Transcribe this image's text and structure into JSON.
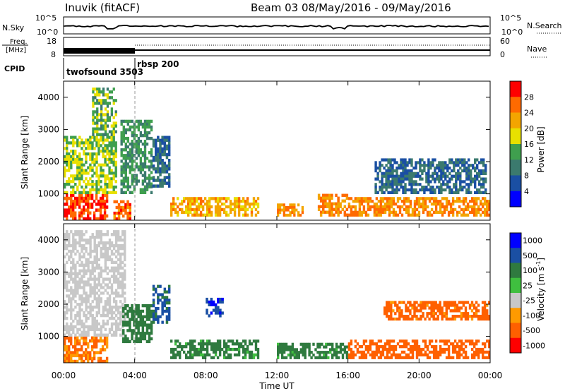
{
  "header": {
    "station": "Inuvik (fitACF)",
    "beam": "Beam 03 08/May/2016 - 09/May/2016"
  },
  "top_panels": {
    "nsky": {
      "left_label": "N.Sky",
      "left_ticks": [
        "10^5",
        "10^0"
      ],
      "right_ticks": [
        "10^5",
        "10^0"
      ],
      "right_label": "N.Search"
    },
    "freq": {
      "label_line1": "Freq.",
      "label_line2": "[MHz]",
      "left_ticks": [
        "18",
        "8"
      ],
      "right_ticks": [
        "60",
        "0"
      ],
      "right_label": "Nave"
    },
    "cpid": {
      "label": "CPID",
      "modes": [
        {
          "name": "twofsound 3503",
          "start_h": 0,
          "end_h": 4
        },
        {
          "name": "rbsp 200",
          "start_h": 4,
          "end_h": 24
        }
      ]
    }
  },
  "chart_data": [
    {
      "type": "heatmap",
      "title": "Power",
      "xlabel": "Time UT",
      "ylabel": "Slant Range [km]",
      "xlim": [
        0,
        24
      ],
      "ylim": [
        180,
        4500
      ],
      "x_ticks": [
        "00:00",
        "04:00",
        "08:00",
        "12:00",
        "16:00",
        "20:00",
        "00:00"
      ],
      "y_ticks": [
        "1000",
        "2000",
        "3000",
        "4000"
      ],
      "colorbar": {
        "label": "Power [dB]",
        "ticks": [
          "4",
          "8",
          "12",
          "16",
          "20",
          "24",
          "28"
        ],
        "colors": [
          "#0000ff",
          "#1a4fa3",
          "#3b7a6e",
          "#3f9f4e",
          "#e8e000",
          "#f3a500",
          "#ff6a00",
          "#ff0000"
        ]
      },
      "regions": [
        {
          "t0": 0.0,
          "t1": 2.5,
          "r0": 180,
          "r1": 1000,
          "value": 28
        },
        {
          "t0": 0.0,
          "t1": 3.0,
          "r0": 1000,
          "r1": 2800,
          "value": 16
        },
        {
          "t0": 1.6,
          "t1": 3.0,
          "r0": 2800,
          "r1": 4300,
          "value": 14
        },
        {
          "t0": 2.8,
          "t1": 3.8,
          "r0": 180,
          "r1": 800,
          "value": 26
        },
        {
          "t0": 3.2,
          "t1": 5.0,
          "r0": 1000,
          "r1": 3300,
          "value": 12
        },
        {
          "t0": 5.0,
          "t1": 6.0,
          "r0": 1200,
          "r1": 2800,
          "value": 8
        },
        {
          "t0": 6.0,
          "t1": 11.0,
          "r0": 300,
          "r1": 900,
          "value": 22
        },
        {
          "t0": 12.0,
          "t1": 13.5,
          "r0": 300,
          "r1": 700,
          "value": 24
        },
        {
          "t0": 14.3,
          "t1": 16.0,
          "r0": 300,
          "r1": 1000,
          "value": 24
        },
        {
          "t0": 16.0,
          "t1": 24.0,
          "r0": 300,
          "r1": 900,
          "value": 24
        },
        {
          "t0": 17.5,
          "t1": 23.8,
          "r0": 1000,
          "r1": 2100,
          "value": 8
        }
      ]
    },
    {
      "type": "heatmap",
      "title": "Velocity",
      "xlabel": "Time UT",
      "ylabel": "Slant Range [km]",
      "xlim": [
        0,
        24
      ],
      "ylim": [
        180,
        4500
      ],
      "x_ticks": [
        "00:00",
        "04:00",
        "08:00",
        "12:00",
        "16:00",
        "20:00",
        "00:00"
      ],
      "y_ticks": [
        "1000",
        "2000",
        "3000",
        "4000"
      ],
      "colorbar": {
        "label": "Velocity [m s^-1]",
        "ticks": [
          "1000",
          "500",
          "100",
          "25",
          "-25",
          "-100",
          "-500",
          "-1000"
        ],
        "colors": [
          "#0000ff",
          "#1a4fa3",
          "#2f7a3f",
          "#3fbf3f",
          "#c8c8c8",
          "#ff9a00",
          "#ff6000",
          "#ff0000"
        ]
      },
      "regions": [
        {
          "t0": 0.0,
          "t1": 2.5,
          "r0": 180,
          "r1": 1000,
          "value": -100
        },
        {
          "t0": 0.0,
          "t1": 3.5,
          "r0": 1000,
          "r1": 4300,
          "value": 0
        },
        {
          "t0": 3.3,
          "t1": 5.0,
          "r0": 800,
          "r1": 2000,
          "value": 200
        },
        {
          "t0": 5.0,
          "t1": 6.0,
          "r0": 1400,
          "r1": 2600,
          "value": 600
        },
        {
          "t0": 6.0,
          "t1": 11.0,
          "r0": 300,
          "r1": 900,
          "value": 150
        },
        {
          "t0": 8.0,
          "t1": 9.0,
          "r0": 1600,
          "r1": 2200,
          "value": 900
        },
        {
          "t0": 12.0,
          "t1": 16.0,
          "r0": 300,
          "r1": 800,
          "value": 150
        },
        {
          "t0": 16.0,
          "t1": 24.0,
          "r0": 300,
          "r1": 900,
          "value": -200
        },
        {
          "t0": 18.0,
          "t1": 24.0,
          "r0": 1500,
          "r1": 2100,
          "value": -150
        }
      ]
    }
  ]
}
